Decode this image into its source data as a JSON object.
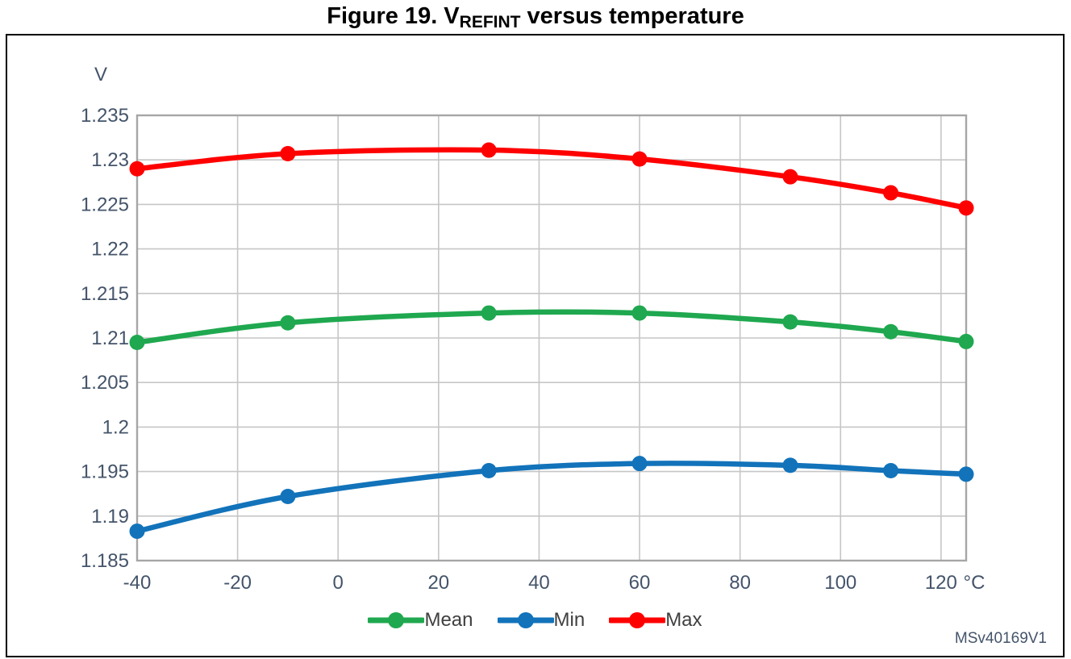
{
  "title": {
    "prefix": "Figure 19. V",
    "subscript": "REFINT",
    "suffix": " versus temperature"
  },
  "watermark": "MSv40169V1",
  "chart_data": {
    "type": "line",
    "title": "Figure 19. VREFINT versus temperature",
    "xlabel": "",
    "ylabel": "V",
    "x_unit_label": "°C",
    "xlim": [
      -40,
      125
    ],
    "ylim": [
      1.185,
      1.235
    ],
    "grid": true,
    "legend_position": "bottom",
    "x_ticks": [
      -40,
      -20,
      0,
      20,
      40,
      60,
      80,
      100,
      120
    ],
    "x_tick_labels": [
      "-40",
      "-20",
      "0",
      "20",
      "40",
      "60",
      "80",
      "100",
      "120"
    ],
    "y_ticks": [
      1.185,
      1.19,
      1.195,
      1.2,
      1.205,
      1.21,
      1.215,
      1.22,
      1.225,
      1.23,
      1.235
    ],
    "y_tick_labels": [
      "1.185",
      "1.19",
      "1.195",
      "1.2",
      "1.205",
      "1.21",
      "1.215",
      "1.22",
      "1.225",
      "1.23",
      "1.235"
    ],
    "x": [
      -40,
      -10,
      30,
      60,
      90,
      110,
      125
    ],
    "series": [
      {
        "name": "Mean",
        "color": "#1FA84F",
        "values": [
          1.2095,
          1.2117,
          1.2128,
          1.2128,
          1.2118,
          1.2107,
          1.2096
        ]
      },
      {
        "name": "Min",
        "color": "#1273BA",
        "values": [
          1.1883,
          1.1922,
          1.1951,
          1.1959,
          1.1957,
          1.1951,
          1.1947
        ]
      },
      {
        "name": "Max",
        "color": "#FF0000",
        "values": [
          1.229,
          1.2307,
          1.2311,
          1.2301,
          1.2281,
          1.2263,
          1.2246
        ]
      }
    ]
  },
  "colors": {
    "grid": "#C6C6C6",
    "plot_border": "#A6A6A6",
    "tick_text": "#44546A",
    "legend_text": "#404040",
    "title_text": "#000000",
    "frame_border": "#000000",
    "watermark_text": "#44546A"
  }
}
